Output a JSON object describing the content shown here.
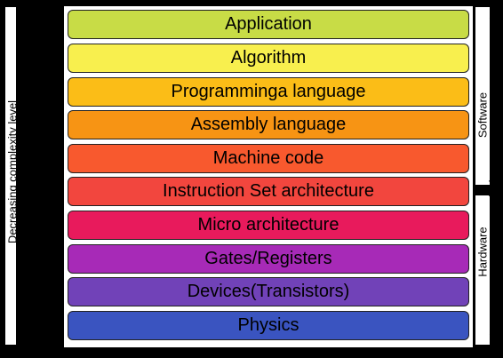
{
  "layers": [
    {
      "label": "Application",
      "color": "#c8dc46"
    },
    {
      "label": "Algorithm",
      "color": "#f8ef4e"
    },
    {
      "label": "Programminga language",
      "color": "#fbbd17"
    },
    {
      "label": "Assembly language",
      "color": "#f79414"
    },
    {
      "label": "Machine code",
      "color": "#f8592e"
    },
    {
      "label": "Instruction Set architecture",
      "color": "#f2463e"
    },
    {
      "label": "Micro architecture",
      "color": "#e81a5c"
    },
    {
      "label": "Gates/Registers",
      "color": "#a72ab7"
    },
    {
      "label": "Devices(Transistors)",
      "color": "#7142b8"
    },
    {
      "label": "Physics",
      "color": "#3a54c0"
    }
  ],
  "left_axis": {
    "label": "Decreasing complexity level"
  },
  "right_axis": {
    "software_label": "Software",
    "hardware_label": "Hardware"
  }
}
